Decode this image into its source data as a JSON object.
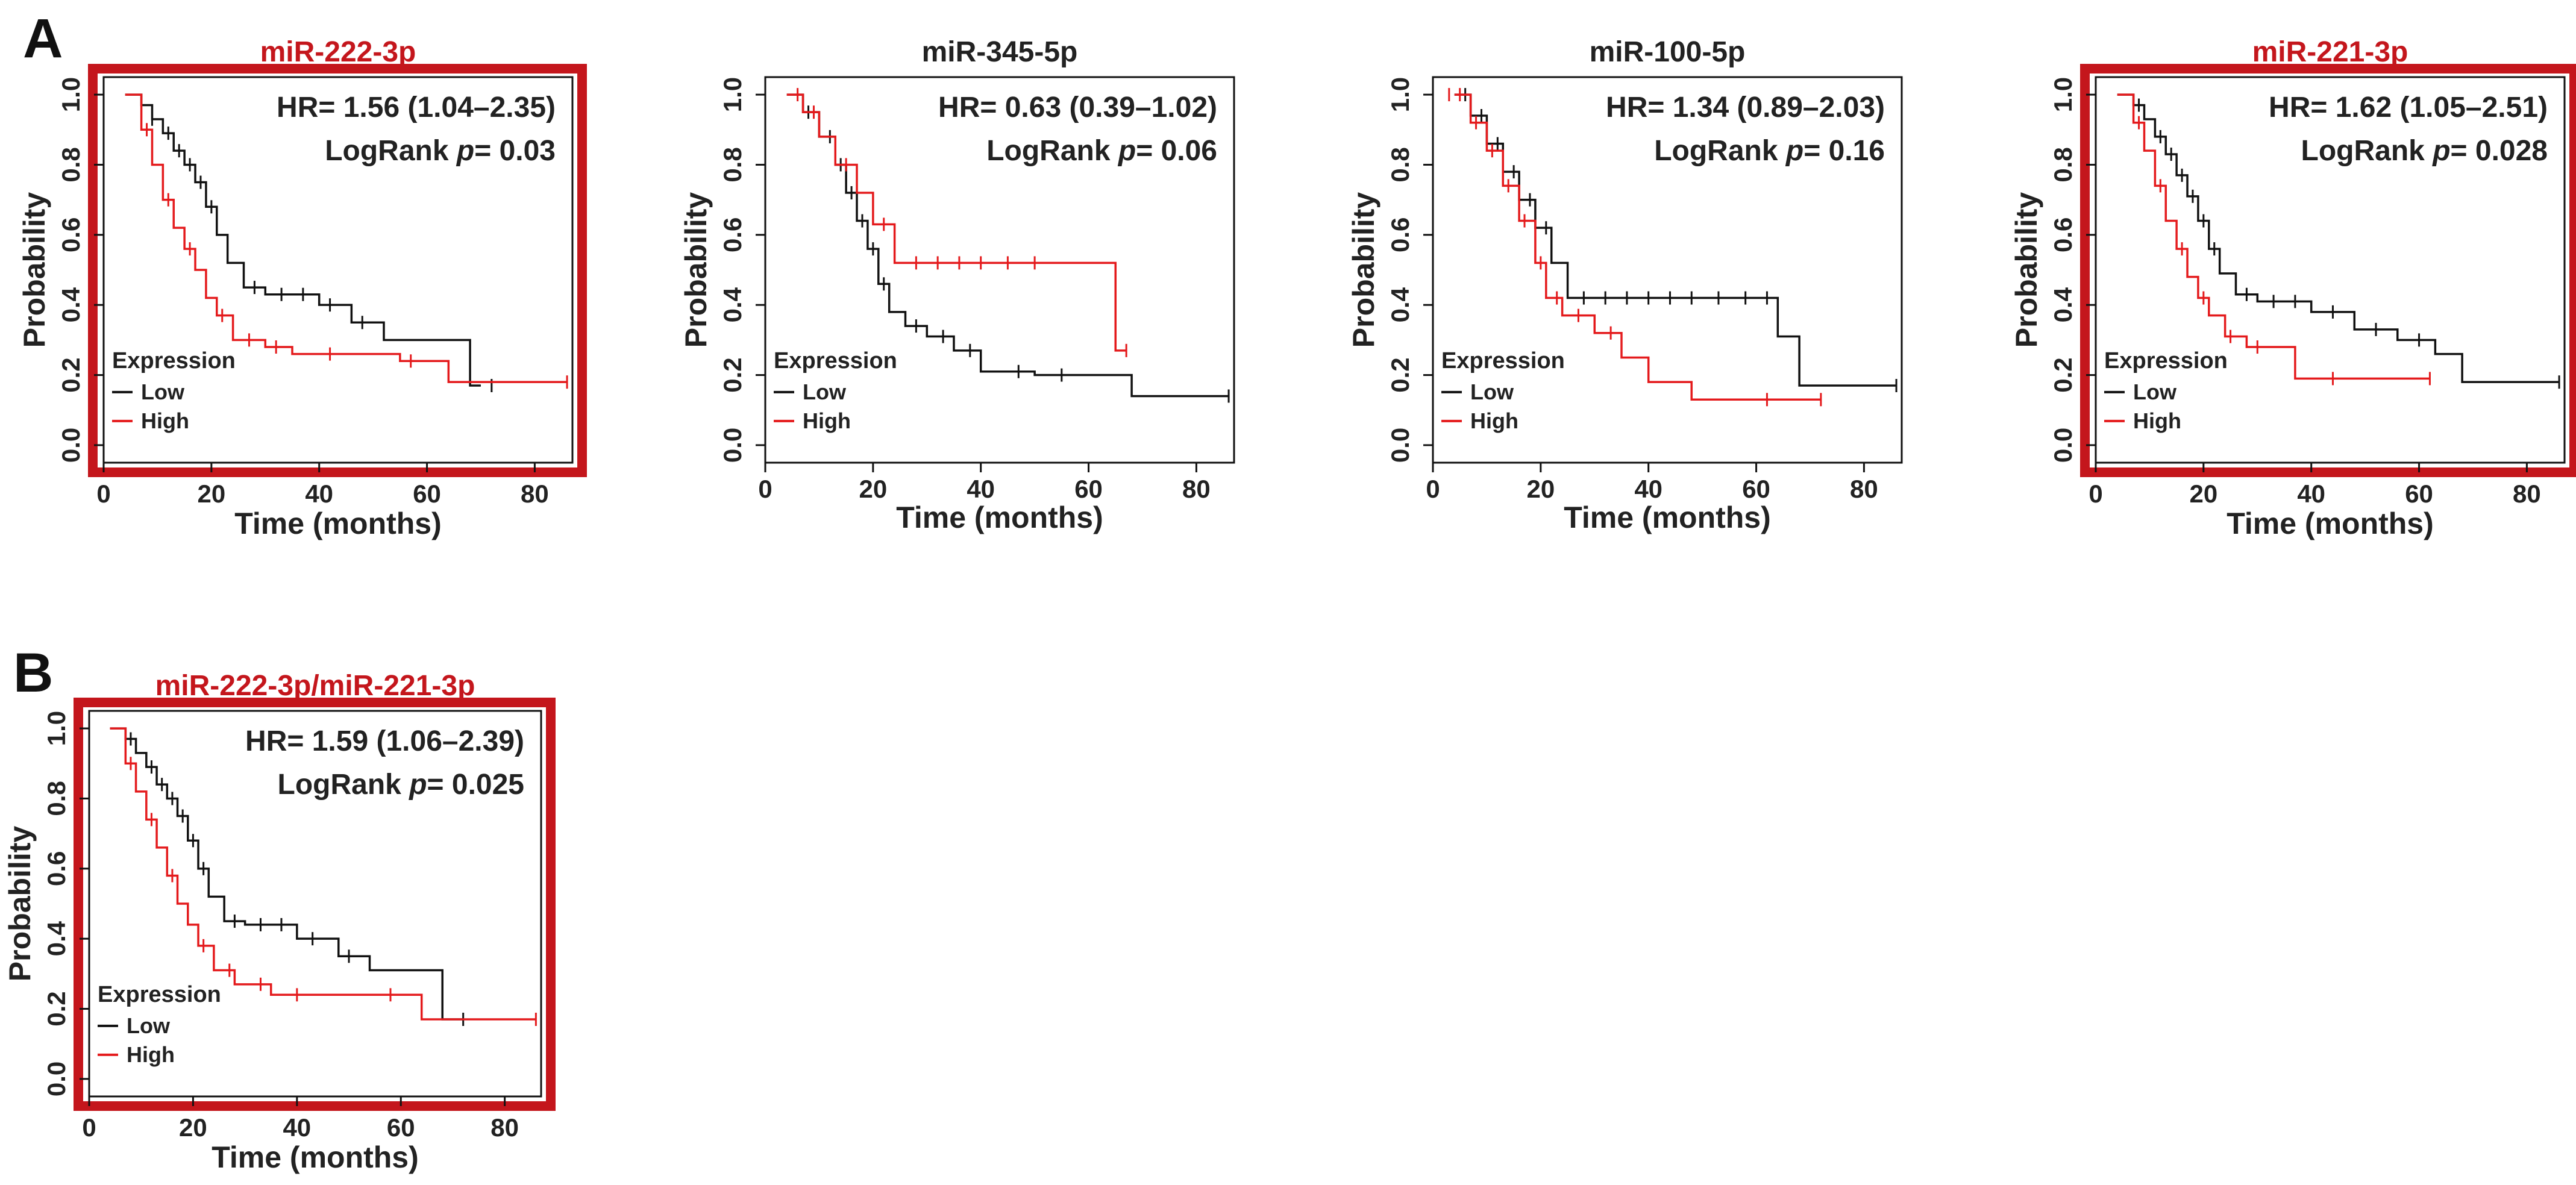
{
  "panel_labels": [
    "A",
    "B"
  ],
  "colors": {
    "highlight": "#c4161c",
    "high": "#e41a1c",
    "low": "#111111",
    "title_default": "#222222"
  },
  "chart_data": [
    {
      "id": "c1",
      "panel": "A",
      "type": "line",
      "title": "miR-222-3p",
      "highlighted": true,
      "xlabel": "Time (months)",
      "ylabel": "Probability",
      "xlim": [
        0,
        87
      ],
      "ylim": [
        -0.05,
        1.05
      ],
      "xticks": [
        0,
        20,
        40,
        60,
        80
      ],
      "yticks": [
        0.0,
        0.2,
        0.4,
        0.6,
        0.8,
        1.0
      ],
      "annotation": {
        "hr": "HR= 1.56 (1.04–2.35)",
        "logrank_prefix": "LogRank ",
        "p_symbol": "p",
        "p_value": "= 0.03"
      },
      "legend": {
        "title": "Expression",
        "entries": [
          "Low",
          "High"
        ]
      },
      "series": [
        {
          "name": "Low",
          "color": "#111111",
          "x": [
            4,
            7,
            9,
            11,
            13,
            15,
            17,
            19,
            21,
            23,
            26,
            30,
            40,
            46,
            52,
            68,
            70
          ],
          "y": [
            1.0,
            0.97,
            0.93,
            0.89,
            0.84,
            0.8,
            0.75,
            0.68,
            0.6,
            0.52,
            0.45,
            0.43,
            0.4,
            0.35,
            0.3,
            0.17,
            0.17
          ],
          "censor_x": [
            9,
            12,
            14,
            16,
            18,
            20,
            28,
            33,
            37,
            42,
            48,
            72
          ]
        },
        {
          "name": "High",
          "color": "#e41a1c",
          "x": [
            4,
            7,
            9,
            11,
            13,
            15,
            17,
            19,
            21,
            24,
            30,
            35,
            55,
            64,
            86
          ],
          "y": [
            1.0,
            0.9,
            0.8,
            0.7,
            0.62,
            0.56,
            0.5,
            0.42,
            0.37,
            0.3,
            0.28,
            0.26,
            0.24,
            0.18,
            0.18
          ],
          "censor_x": [
            8,
            12,
            16,
            22,
            27,
            32,
            42,
            57,
            86
          ]
        }
      ]
    },
    {
      "id": "c2",
      "panel": "A",
      "type": "line",
      "title": "miR-345-5p",
      "highlighted": false,
      "xlabel": "Time (months)",
      "ylabel": "Probability",
      "xlim": [
        0,
        87
      ],
      "ylim": [
        -0.05,
        1.05
      ],
      "xticks": [
        0,
        20,
        40,
        60,
        80
      ],
      "yticks": [
        0.0,
        0.2,
        0.4,
        0.6,
        0.8,
        1.0
      ],
      "annotation": {
        "hr": "HR= 0.63 (0.39–1.02)",
        "logrank_prefix": "LogRank ",
        "p_symbol": "p",
        "p_value": "= 0.06"
      },
      "legend": {
        "title": "Expression",
        "entries": [
          "Low",
          "High"
        ]
      },
      "series": [
        {
          "name": "Low",
          "color": "#111111",
          "x": [
            4,
            7,
            10,
            13,
            15,
            17,
            19,
            21,
            23,
            26,
            30,
            35,
            40,
            50,
            68,
            86
          ],
          "y": [
            1.0,
            0.95,
            0.88,
            0.8,
            0.72,
            0.64,
            0.56,
            0.46,
            0.38,
            0.34,
            0.31,
            0.27,
            0.21,
            0.2,
            0.14,
            0.14
          ],
          "censor_x": [
            8,
            12,
            14,
            16,
            18,
            20,
            22,
            28,
            33,
            38,
            47,
            55,
            86
          ]
        },
        {
          "name": "High",
          "color": "#e41a1c",
          "x": [
            4,
            7,
            10,
            13,
            17,
            20,
            24,
            65,
            67
          ],
          "y": [
            1.0,
            0.95,
            0.88,
            0.8,
            0.72,
            0.63,
            0.52,
            0.27,
            0.27
          ],
          "censor_x": [
            6,
            9,
            15,
            22,
            28,
            32,
            36,
            40,
            45,
            50,
            67
          ]
        }
      ]
    },
    {
      "id": "c3",
      "panel": "A",
      "type": "line",
      "title": "miR-100-5p",
      "highlighted": false,
      "xlabel": "Time (months)",
      "ylabel": "Probability",
      "xlim": [
        0,
        87
      ],
      "ylim": [
        -0.05,
        1.05
      ],
      "xticks": [
        0,
        20,
        40,
        60,
        80
      ],
      "yticks": [
        0.0,
        0.2,
        0.4,
        0.6,
        0.8,
        1.0
      ],
      "annotation": {
        "hr": "HR= 1.34 (0.89–2.03)",
        "logrank_prefix": "LogRank ",
        "p_symbol": "p",
        "p_value": "= 0.16"
      },
      "legend": {
        "title": "Expression",
        "entries": [
          "Low",
          "High"
        ]
      },
      "series": [
        {
          "name": "Low",
          "color": "#111111",
          "x": [
            4,
            7,
            10,
            13,
            16,
            19,
            22,
            25,
            64,
            68,
            86
          ],
          "y": [
            1.0,
            0.94,
            0.86,
            0.78,
            0.7,
            0.62,
            0.52,
            0.42,
            0.31,
            0.17,
            0.17
          ],
          "censor_x": [
            6,
            9,
            12,
            15,
            18,
            21,
            28,
            32,
            36,
            40,
            44,
            48,
            53,
            58,
            62,
            86
          ]
        },
        {
          "name": "High",
          "color": "#e41a1c",
          "x": [
            4,
            7,
            10,
            13,
            16,
            19,
            21,
            24,
            30,
            35,
            40,
            48,
            72
          ],
          "y": [
            1.0,
            0.92,
            0.84,
            0.74,
            0.64,
            0.52,
            0.42,
            0.37,
            0.32,
            0.25,
            0.18,
            0.13,
            0.13
          ],
          "censor_x": [
            3,
            5,
            8,
            11,
            14,
            17,
            20,
            23,
            27,
            33,
            62,
            72
          ]
        }
      ]
    },
    {
      "id": "c4",
      "panel": "A",
      "type": "line",
      "title": "miR-221-3p",
      "highlighted": true,
      "xlabel": "Time (months)",
      "ylabel": "Probability",
      "xlim": [
        0,
        87
      ],
      "ylim": [
        -0.05,
        1.05
      ],
      "xticks": [
        0,
        20,
        40,
        60,
        80
      ],
      "yticks": [
        0.0,
        0.2,
        0.4,
        0.6,
        0.8,
        1.0
      ],
      "annotation": {
        "hr": "HR= 1.62 (1.05–2.51)",
        "logrank_prefix": "LogRank ",
        "p_symbol": "p",
        "p_value": "= 0.028"
      },
      "legend": {
        "title": "Expression",
        "entries": [
          "Low",
          "High"
        ]
      },
      "series": [
        {
          "name": "Low",
          "color": "#111111",
          "x": [
            4,
            7,
            9,
            11,
            13,
            15,
            17,
            19,
            21,
            23,
            26,
            30,
            40,
            48,
            56,
            63,
            68,
            86
          ],
          "y": [
            1.0,
            0.97,
            0.93,
            0.88,
            0.83,
            0.77,
            0.71,
            0.64,
            0.56,
            0.49,
            0.43,
            0.41,
            0.38,
            0.33,
            0.3,
            0.26,
            0.18,
            0.18
          ],
          "censor_x": [
            8,
            12,
            14,
            16,
            18,
            20,
            22,
            28,
            33,
            37,
            44,
            52,
            60,
            86
          ]
        },
        {
          "name": "High",
          "color": "#e41a1c",
          "x": [
            4,
            7,
            9,
            11,
            13,
            15,
            17,
            19,
            21,
            24,
            28,
            37,
            62
          ],
          "y": [
            1.0,
            0.92,
            0.84,
            0.74,
            0.64,
            0.56,
            0.48,
            0.42,
            0.37,
            0.31,
            0.28,
            0.19,
            0.19
          ],
          "censor_x": [
            8,
            12,
            16,
            20,
            25,
            30,
            44,
            62
          ]
        }
      ]
    },
    {
      "id": "c5",
      "panel": "B",
      "type": "line",
      "title": "miR-222-3p/miR-221-3p",
      "highlighted": true,
      "xlabel": "Time (months)",
      "ylabel": "Probability",
      "xlim": [
        0,
        87
      ],
      "ylim": [
        -0.05,
        1.05
      ],
      "xticks": [
        0,
        20,
        40,
        60,
        80
      ],
      "yticks": [
        0.0,
        0.2,
        0.4,
        0.6,
        0.8,
        1.0
      ],
      "annotation": {
        "hr": "HR= 1.59 (1.06–2.39)",
        "logrank_prefix": "LogRank ",
        "p_symbol": "p",
        "p_value": "= 0.025"
      },
      "legend": {
        "title": "Expression",
        "entries": [
          "Low",
          "High"
        ]
      },
      "series": [
        {
          "name": "Low",
          "color": "#111111",
          "x": [
            4,
            7,
            9,
            11,
            13,
            15,
            17,
            19,
            21,
            23,
            26,
            30,
            40,
            48,
            54,
            68,
            72
          ],
          "y": [
            1.0,
            0.97,
            0.93,
            0.89,
            0.84,
            0.8,
            0.75,
            0.68,
            0.6,
            0.52,
            0.45,
            0.44,
            0.4,
            0.35,
            0.31,
            0.17,
            0.17
          ],
          "censor_x": [
            8,
            12,
            14,
            16,
            18,
            20,
            22,
            28,
            33,
            37,
            43,
            50,
            72
          ]
        },
        {
          "name": "High",
          "color": "#e41a1c",
          "x": [
            4,
            7,
            9,
            11,
            13,
            15,
            17,
            19,
            21,
            24,
            28,
            35,
            64,
            86
          ],
          "y": [
            1.0,
            0.9,
            0.82,
            0.74,
            0.66,
            0.58,
            0.5,
            0.44,
            0.38,
            0.31,
            0.27,
            0.24,
            0.17,
            0.17
          ],
          "censor_x": [
            8,
            12,
            16,
            22,
            27,
            33,
            40,
            58,
            86
          ]
        }
      ]
    }
  ]
}
